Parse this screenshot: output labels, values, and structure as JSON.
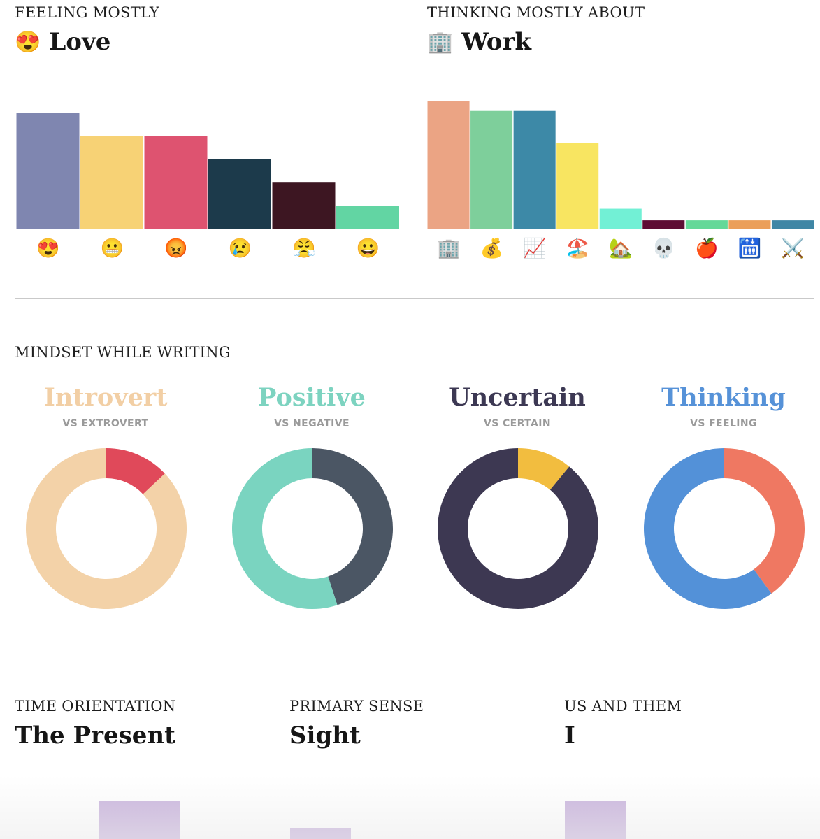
{
  "feeling": {
    "caption": "FEELING MOSTLY",
    "emoji": "😍",
    "value": "Love"
  },
  "thinking": {
    "caption": "THINKING MOSTLY ABOUT",
    "emoji": "🏢",
    "value": "Work"
  },
  "mindset": {
    "caption": "MINDSET WHILE WRITING",
    "items": [
      {
        "title": "Introvert",
        "subtitle": "VS EXTROVERT",
        "title_color": "#f2cfa5"
      },
      {
        "title": "Positive",
        "subtitle": "VS NEGATIVE",
        "title_color": "#7dd3c0"
      },
      {
        "title": "Uncertain",
        "subtitle": "VS CERTAIN",
        "title_color": "#3c3853"
      },
      {
        "title": "Thinking",
        "subtitle": "VS FEELING",
        "title_color": "#5692d8"
      }
    ]
  },
  "time": {
    "caption": "TIME ORIENTATION",
    "value": "The Present"
  },
  "sense": {
    "caption": "PRIMARY SENSE",
    "value": "Sight"
  },
  "usthem": {
    "caption": "US AND THEM",
    "value": "I"
  },
  "chart_data": [
    {
      "type": "bar",
      "categories": [
        "😍",
        "😬",
        "😡",
        "😢",
        "😤",
        "😀"
      ],
      "values": [
        100,
        80,
        80,
        60,
        40,
        20
      ],
      "colors": [
        "#7f86b0",
        "#f7d275",
        "#de5370",
        "#1c3a4b",
        "#3d1622",
        "#62d5a3"
      ]
    },
    {
      "type": "bar",
      "categories": [
        "🏢",
        "💰",
        "📈",
        "🏖️",
        "🏡",
        "💀",
        "🍎",
        "🛗",
        "⚔️"
      ],
      "values": [
        100,
        92,
        92,
        67,
        16,
        7,
        7,
        7,
        7
      ],
      "colors": [
        "#eba484",
        "#7ecf9b",
        "#3d89a7",
        "#f8e561",
        "#72f0d5",
        "#5e0d34",
        "#64d898",
        "#eb9f5a",
        "#3f86a5"
      ]
    },
    {
      "type": "pie",
      "labels": [
        "Introvert",
        "Extrovert"
      ],
      "values": [
        87,
        13
      ],
      "colors": [
        "#f3d2a8",
        "#e0495a"
      ]
    },
    {
      "type": "pie",
      "labels": [
        "Positive",
        "Negative"
      ],
      "values": [
        55,
        45
      ],
      "colors": [
        "#7ad4c0",
        "#4b5664"
      ]
    },
    {
      "type": "pie",
      "labels": [
        "Uncertain",
        "Certain"
      ],
      "values": [
        89,
        11
      ],
      "colors": [
        "#3d3852",
        "#f2bd3f"
      ]
    },
    {
      "type": "pie",
      "labels": [
        "Thinking",
        "Feeling"
      ],
      "values": [
        60,
        40
      ],
      "colors": [
        "#5391d8",
        "#ef7862"
      ]
    }
  ],
  "bottom_bars": {
    "color": "#c8b2dc",
    "values": [
      54,
      16,
      54
    ]
  }
}
